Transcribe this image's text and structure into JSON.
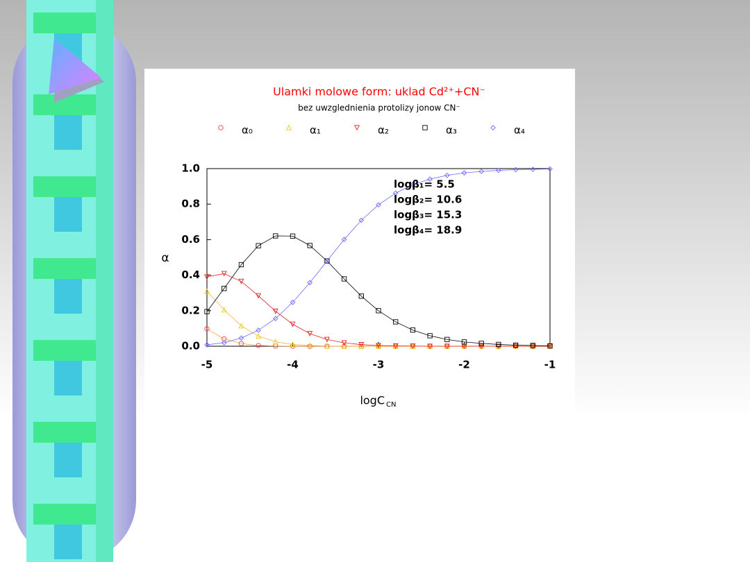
{
  "chart_data": {
    "type": "line",
    "title": "Ulamki molowe form: uklad Cd²⁺+CN⁻",
    "subtitle": "bez uwzglednienia protolizy jonow CN⁻",
    "x_label": "logC",
    "x_label_sub": "CN",
    "y_label": "α",
    "annotations": [
      "logβ₁= 5.5",
      "logβ₂= 10.6",
      "logβ₃= 15.3",
      "logβ₄= 18.9"
    ],
    "x": [
      -5,
      -4.8,
      -4.6,
      -4.4,
      -4.2,
      -4,
      -3.8,
      -3.6,
      -3.4,
      -3.2,
      -3,
      -2.8,
      -2.6,
      -2.4,
      -2.2,
      -2,
      -1.8,
      -1.6,
      -1.4,
      -1.2,
      -1
    ],
    "series": [
      {
        "name": "α₀",
        "color": "#ff4040",
        "line_color": "#ff9a40",
        "marker": "circle",
        "values": [
          0.098,
          0.041,
          0.015,
          0.004,
          0.001,
          0,
          0,
          0,
          0,
          0,
          0,
          0,
          0,
          0,
          0,
          0,
          0,
          0,
          0,
          0,
          0
        ]
      },
      {
        "name": "α₁",
        "color": "#e8d000",
        "line_color": "#ffb040",
        "marker": "triangle-up",
        "values": [
          0.309,
          0.205,
          0.115,
          0.057,
          0.025,
          0.01,
          0.004,
          0.001,
          0,
          0,
          0,
          0,
          0,
          0,
          0,
          0,
          0,
          0,
          0,
          0,
          0
        ]
      },
      {
        "name": "α₂",
        "color": "#e02020",
        "line_color": "#e02020",
        "marker": "triangle-down",
        "values": [
          0.39,
          0.409,
          0.365,
          0.284,
          0.197,
          0.124,
          0.071,
          0.038,
          0.019,
          0.009,
          0.004,
          0.002,
          0.001,
          0,
          0,
          0,
          0,
          0,
          0,
          0,
          0
        ]
      },
      {
        "name": "α₃",
        "color": "#000000",
        "line_color": "#000000",
        "marker": "square",
        "values": [
          0.195,
          0.325,
          0.459,
          0.566,
          0.621,
          0.62,
          0.567,
          0.48,
          0.379,
          0.282,
          0.2,
          0.137,
          0.091,
          0.059,
          0.038,
          0.024,
          0.016,
          0.01,
          0.006,
          0.004,
          0.002
        ]
      },
      {
        "name": "α₄",
        "color": "#6a6aff",
        "line_color": "#6a6aff",
        "marker": "diamond",
        "values": [
          0.008,
          0.02,
          0.046,
          0.09,
          0.156,
          0.247,
          0.358,
          0.48,
          0.601,
          0.709,
          0.796,
          0.862,
          0.909,
          0.941,
          0.962,
          0.976,
          0.984,
          0.99,
          0.994,
          0.996,
          0.998
        ]
      }
    ],
    "xlim": [
      -5,
      -1
    ],
    "xticks": [
      -5,
      -4,
      -3,
      -2,
      -1
    ],
    "ylim": [
      0,
      1
    ],
    "yticks": [
      {
        "value": 0,
        "label": "0.0"
      },
      {
        "value": 0.2,
        "label": "0.2"
      },
      {
        "value": 0.4,
        "label": "0.4"
      },
      {
        "value": 0.6,
        "label": "0.6"
      },
      {
        "value": 0.8,
        "label": "0.8"
      },
      {
        "value": 1,
        "label": "1.0"
      }
    ]
  }
}
